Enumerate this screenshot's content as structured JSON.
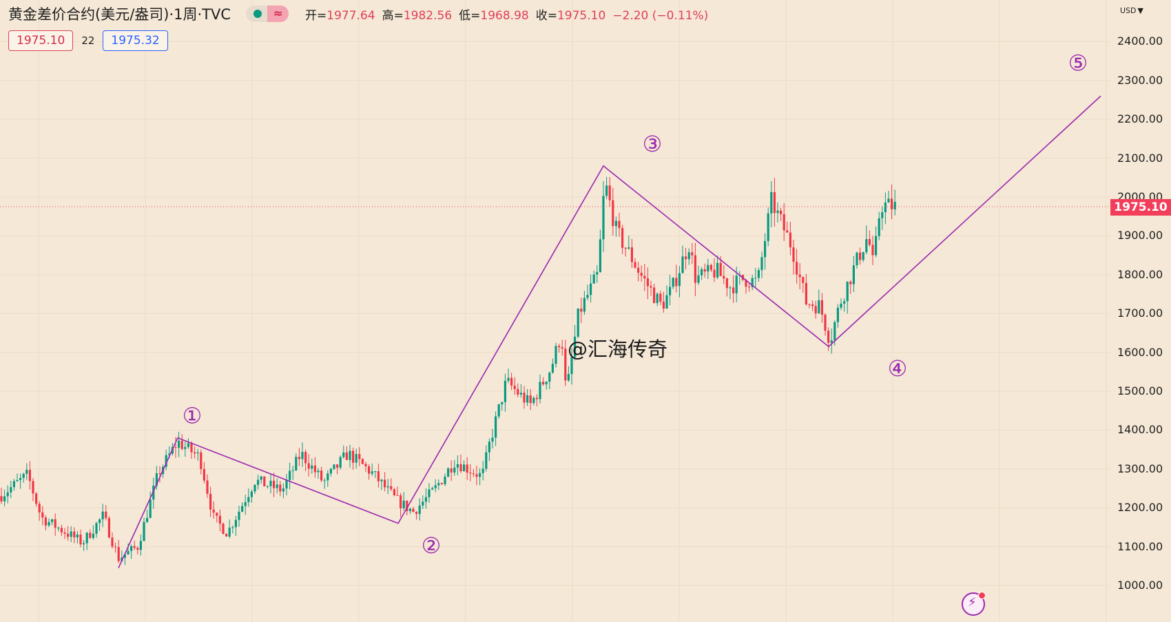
{
  "header": {
    "symbol": "黄金差价合约(美元/盎司)·1周·TVC",
    "open_label": "开=",
    "open": "1977.64",
    "high_label": "高=",
    "high": "1982.56",
    "low_label": "低=",
    "low": "1968.98",
    "close_label": "收=",
    "close": "1975.10",
    "change": "−2.20 (−0.11%)"
  },
  "prices": {
    "sell": "1975.10",
    "spread": "22",
    "buy": "1975.32"
  },
  "axis": {
    "currency": "USD"
  },
  "last_price_label": "1975.10",
  "watermark": "@汇海传奇",
  "colors": {
    "background": "#f5e8d6",
    "up": "#089981",
    "down": "#f23645",
    "wave": "#9c27b0",
    "last_price": "#f23e5a"
  },
  "chart_data": {
    "type": "candlestick",
    "y_axis": {
      "min": 1000,
      "max": 2400,
      "ticks": [
        "1000.00",
        "1100.00",
        "1200.00",
        "1300.00",
        "1400.00",
        "1500.00",
        "1600.00",
        "1700.00",
        "1800.00",
        "1900.00",
        "2000.00",
        "2100.00",
        "2200.00",
        "2300.00",
        "2400.00"
      ]
    },
    "grid": true,
    "last_price": 1975.1,
    "price_path": [
      [
        0,
        1230
      ],
      [
        40,
        1285
      ],
      [
        60,
        1175
      ],
      [
        120,
        1110
      ],
      [
        150,
        1180
      ],
      [
        172,
        1070
      ],
      [
        200,
        1100
      ],
      [
        230,
        1290
      ],
      [
        258,
        1370
      ],
      [
        290,
        1330
      ],
      [
        310,
        1175
      ],
      [
        330,
        1135
      ],
      [
        370,
        1270
      ],
      [
        410,
        1245
      ],
      [
        437,
        1340
      ],
      [
        470,
        1265
      ],
      [
        505,
        1340
      ],
      [
        540,
        1290
      ],
      [
        575,
        1220
      ],
      [
        600,
        1190
      ],
      [
        630,
        1245
      ],
      [
        660,
        1320
      ],
      [
        700,
        1280
      ],
      [
        710,
        1360
      ],
      [
        735,
        1525
      ],
      [
        770,
        1465
      ],
      [
        800,
        1560
      ],
      [
        815,
        1650
      ],
      [
        822,
        1490
      ],
      [
        840,
        1700
      ],
      [
        868,
        1800
      ],
      [
        878,
        2040
      ],
      [
        895,
        1910
      ],
      [
        915,
        1850
      ],
      [
        930,
        1800
      ],
      [
        960,
        1720
      ],
      [
        975,
        1760
      ],
      [
        1000,
        1880
      ],
      [
        1010,
        1790
      ],
      [
        1040,
        1810
      ],
      [
        1060,
        1770
      ],
      [
        1080,
        1790
      ],
      [
        1100,
        1780
      ],
      [
        1120,
        1990
      ],
      [
        1150,
        1870
      ],
      [
        1170,
        1730
      ],
      [
        1190,
        1720
      ],
      [
        1205,
        1630
      ],
      [
        1220,
        1730
      ],
      [
        1245,
        1840
      ],
      [
        1260,
        1900
      ],
      [
        1268,
        1820
      ],
      [
        1278,
        1980
      ],
      [
        1300,
        1975
      ]
    ],
    "waves": [
      {
        "label": "①",
        "price": 1380
      },
      {
        "label": "②",
        "price": 1160
      },
      {
        "label": "③",
        "price": 2080
      },
      {
        "label": "④",
        "price": 1615
      },
      {
        "label": "⑤",
        "price": 2260
      }
    ]
  }
}
